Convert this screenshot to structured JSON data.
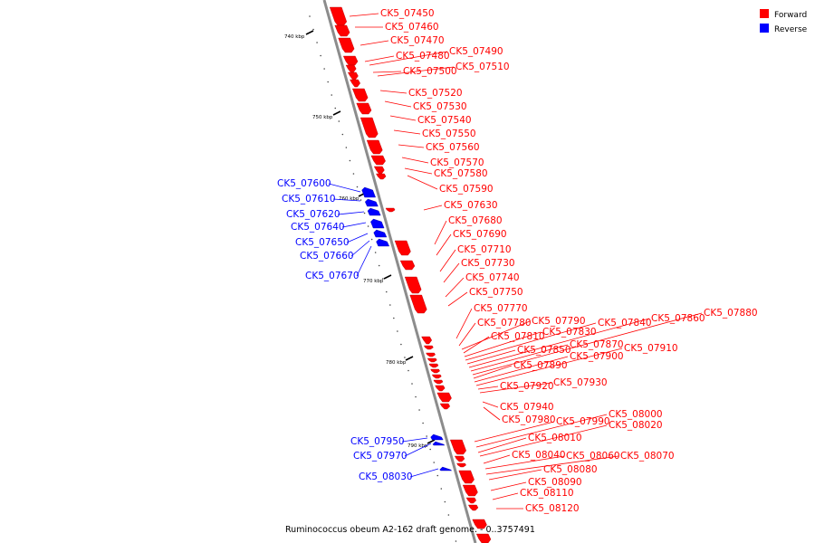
{
  "legend": [
    {
      "label": "Forward",
      "color": "#ff0000"
    },
    {
      "label": "Reverse",
      "color": "#0000ff"
    }
  ],
  "caption": "Ruminococcus obeum A2-162 draft genome. - 0..3757491",
  "kbp_marks": [
    "740 kbp",
    "750 kbp",
    "760 kbp",
    "770 kbp",
    "780 kbp",
    "790 kbp"
  ],
  "forward_genes": [
    "CK5_07450",
    "CK5_07460",
    "CK5_07470",
    "CK5_07480",
    "CK5_07490",
    "CK5_07500",
    "CK5_07510",
    "CK5_07520",
    "CK5_07530",
    "CK5_07540",
    "CK5_07550",
    "CK5_07560",
    "CK5_07570",
    "CK5_07580",
    "CK5_07590",
    "CK5_07630",
    "CK5_07680",
    "CK5_07690",
    "CK5_07710",
    "CK5_07730",
    "CK5_07740",
    "CK5_07750",
    "CK5_07770",
    "CK5_07780",
    "CK5_07790",
    "CK5_07810",
    "CK5_07830",
    "CK5_07840",
    "CK5_07850",
    "CK5_07860",
    "CK5_07870",
    "CK5_07880",
    "CK5_07890",
    "CK5_07900",
    "CK5_07910",
    "CK5_07920",
    "CK5_07930",
    "CK5_07940",
    "CK5_07980",
    "CK5_07990",
    "CK5_08000",
    "CK5_08010",
    "CK5_08020",
    "CK5_08040",
    "CK5_08060",
    "CK5_08070",
    "CK5_08080",
    "CK5_08090",
    "CK5_08110",
    "CK5_08120"
  ],
  "reverse_genes": [
    "CK5_07600",
    "CK5_07610",
    "CK5_07620",
    "CK5_07640",
    "CK5_07650",
    "CK5_07660",
    "CK5_07670",
    "CK5_07950",
    "CK5_07970",
    "CK5_08030"
  ],
  "colors": {
    "forward": "#ff0000",
    "reverse": "#0000ff",
    "backbone": "#8c8c8c"
  }
}
